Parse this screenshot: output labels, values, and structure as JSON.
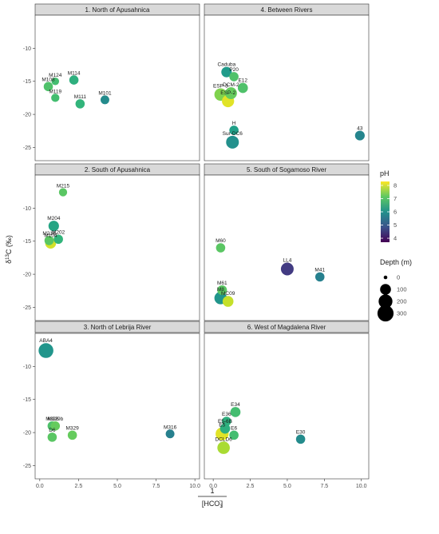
{
  "chart_data": {
    "type": "scatter",
    "x_axis_title": "1/[HCO3-]",
    "x_axis_title_top": "1",
    "x_axis_title_bottom": "[HCO",
    "x_axis_title_sub": "3",
    "x_axis_title_sup": "-",
    "y_axis_title": "δ13C (‰)",
    "y_axis_title_delta": "δ",
    "y_axis_title_sup": "13",
    "y_axis_title_rest": "C (‰)",
    "y_ticks": [
      -10,
      -15,
      -20,
      -25
    ],
    "y_tick_labels": [
      "-10",
      "-15",
      "-20",
      "-25"
    ],
    "ylim": [
      -27,
      -5
    ],
    "x_ticks_left": [
      0,
      2.5,
      5,
      7.5,
      10
    ],
    "x_tick_labels_left": [
      "0.0",
      "2.5",
      "5.0",
      "7.5",
      "10.0"
    ],
    "xlim_left": [
      -0.3,
      10.3
    ],
    "x_ticks_right": [
      0,
      2.5,
      5,
      7.5,
      10
    ],
    "x_tick_labels_right": [
      "0.0",
      "2.5",
      "5.0",
      "7.5",
      "10.0"
    ],
    "xlim_right": [
      -0.6,
      10.5
    ],
    "grid": false,
    "legend": {
      "placement": "right",
      "ph_title": "pH",
      "ph_ticks": [
        8,
        7,
        6,
        5,
        4
      ],
      "ph_tick_labels": [
        "8",
        "7",
        "6",
        "5",
        "4"
      ],
      "ph_range": [
        3.7,
        8.3
      ],
      "depth_title": "Depth (m)",
      "depth_values": [
        0,
        100,
        200,
        300
      ],
      "depth_labels": [
        "0",
        "100",
        "200",
        "300"
      ]
    },
    "panels": [
      {
        "title": "1. North of Apusahnica",
        "points": [
          {
            "label": "M124",
            "x": 1.0,
            "y": -15.0,
            "ph": 6.9,
            "depth": 30
          },
          {
            "label": "M108",
            "x": 0.55,
            "y": -15.8,
            "ph": 7.0,
            "depth": 60
          },
          {
            "label": "M114",
            "x": 2.2,
            "y": -14.8,
            "ph": 6.6,
            "depth": 60
          },
          {
            "label": "M119",
            "x": 1.0,
            "y": -17.5,
            "ph": 6.9,
            "depth": 40
          },
          {
            "label": "M111",
            "x": 2.6,
            "y": -18.4,
            "ph": 6.7,
            "depth": 60
          },
          {
            "label": "M101",
            "x": 4.2,
            "y": -17.8,
            "ph": 5.9,
            "depth": 50
          }
        ]
      },
      {
        "title": "4. Between Rivers",
        "points": [
          {
            "label": "Caduba",
            "x": 0.9,
            "y": -13.6,
            "ph": 6.2,
            "depth": 90
          },
          {
            "label": "P20",
            "x": 1.4,
            "y": -14.3,
            "ph": 7.0,
            "depth": 60
          },
          {
            "label": "E12",
            "x": 2.0,
            "y": -16.0,
            "ph": 7.0,
            "depth": 80
          },
          {
            "label": "DCM-2",
            "x": 1.2,
            "y": -16.8,
            "ph": 7.2,
            "depth": 130
          },
          {
            "label": "ESP-3",
            "x": 0.5,
            "y": -17.0,
            "ph": 7.4,
            "depth": 150
          },
          {
            "label": "ESP-2",
            "x": 1.0,
            "y": -18.0,
            "ph": 8.1,
            "depth": 140
          },
          {
            "label": "H",
            "x": 1.4,
            "y": -22.4,
            "ph": 6.3,
            "depth": 60
          },
          {
            "label": "Sur-DC6",
            "x": 1.3,
            "y": -24.2,
            "ph": 6.0,
            "depth": 160
          },
          {
            "label": "43",
            "x": 9.9,
            "y": -23.2,
            "ph": 5.8,
            "depth": 70
          }
        ]
      },
      {
        "title": "2. South of Apusahnica",
        "points": [
          {
            "label": "M215",
            "x": 1.5,
            "y": -7.6,
            "ph": 7.1,
            "depth": 40
          },
          {
            "label": "M204",
            "x": 0.9,
            "y": -12.7,
            "ph": 6.4,
            "depth": 90
          },
          {
            "label": "M202",
            "x": 1.2,
            "y": -14.7,
            "ph": 6.7,
            "depth": 60
          },
          {
            "label": "M216",
            "x": 0.6,
            "y": -14.9,
            "ph": 7.1,
            "depth": 60
          },
          {
            "label": "M104",
            "x": 0.7,
            "y": -15.3,
            "ph": 8.0,
            "depth": 100
          }
        ]
      },
      {
        "title": "5. South of Sogamoso River",
        "points": [
          {
            "label": "M60",
            "x": 0.5,
            "y": -16.0,
            "ph": 7.1,
            "depth": 60
          },
          {
            "label": "LL4",
            "x": 5.0,
            "y": -19.2,
            "ph": 4.5,
            "depth": 160
          },
          {
            "label": "M41",
            "x": 7.2,
            "y": -20.4,
            "ph": 5.7,
            "depth": 60
          },
          {
            "label": "M61",
            "x": 0.6,
            "y": -22.4,
            "ph": 7.1,
            "depth": 70
          },
          {
            "label": "M8",
            "x": 0.5,
            "y": -23.6,
            "ph": 6.1,
            "depth": 150
          },
          {
            "label": "MC09",
            "x": 1.0,
            "y": -24.1,
            "ph": 7.9,
            "depth": 100
          }
        ]
      },
      {
        "title": "3. North of Lebrija River",
        "points": [
          {
            "label": "ABA4",
            "x": 0.4,
            "y": -7.6,
            "ph": 6.1,
            "depth": 240
          },
          {
            "label": "M326",
            "x": 0.8,
            "y": -19.0,
            "ph": 7.0,
            "depth": 60
          },
          {
            "label": "M329b",
            "x": 1.0,
            "y": -19.0,
            "ph": 7.2,
            "depth": 60
          },
          {
            "label": "D6",
            "x": 0.8,
            "y": -20.7,
            "ph": 7.1,
            "depth": 60
          },
          {
            "label": "M329",
            "x": 2.1,
            "y": -20.4,
            "ph": 7.2,
            "depth": 60
          },
          {
            "label": "M316",
            "x": 8.4,
            "y": -20.2,
            "ph": 5.7,
            "depth": 50
          }
        ]
      },
      {
        "title": "6. West of Magdalena River",
        "points": [
          {
            "label": "E34",
            "x": 1.5,
            "y": -16.9,
            "ph": 6.9,
            "depth": 80
          },
          {
            "label": "E36",
            "x": 0.9,
            "y": -18.3,
            "ph": 6.6,
            "depth": 60
          },
          {
            "label": "E5-6B",
            "x": 0.8,
            "y": -19.4,
            "ph": 6.6,
            "depth": 80
          },
          {
            "label": "E5",
            "x": 0.6,
            "y": -20.2,
            "ph": 8.1,
            "depth": 170
          },
          {
            "label": "E6",
            "x": 1.4,
            "y": -20.4,
            "ph": 6.9,
            "depth": 60
          },
          {
            "label": "DCLD6",
            "x": 0.7,
            "y": -22.3,
            "ph": 7.7,
            "depth": 150
          },
          {
            "label": "E30",
            "x": 5.9,
            "y": -21.0,
            "ph": 5.9,
            "depth": 60
          }
        ]
      }
    ]
  }
}
